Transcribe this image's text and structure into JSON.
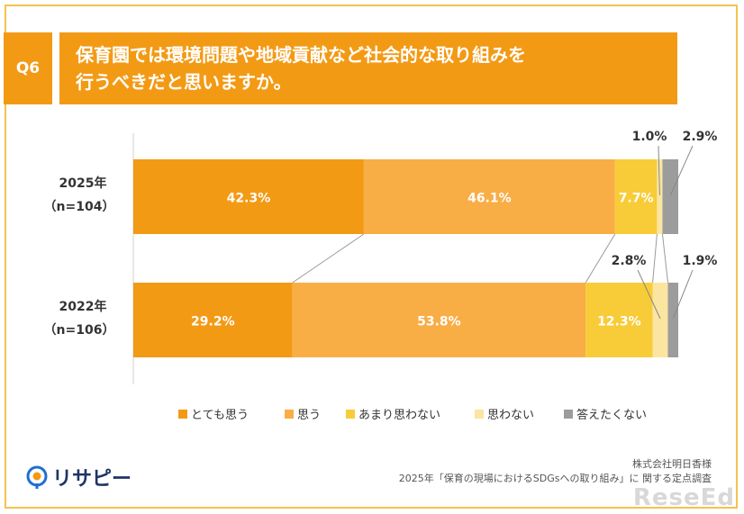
{
  "header": {
    "question_number": "Q6",
    "question_text": "保育園では環境問題や地域貢献など社会的な取り組みを\n行うべきだと思いますか。"
  },
  "colors": {
    "frame": "#f6c24f",
    "header_bg": "#f39a15",
    "series": [
      "#f39a15",
      "#f9ad45",
      "#f8cc38",
      "#fbe5a0",
      "#9c9c9c"
    ]
  },
  "chart_data": {
    "type": "bar",
    "orientation": "horizontal",
    "stacked": true,
    "percent": true,
    "categories": [
      {
        "year": "2025年",
        "n": "（n=104）"
      },
      {
        "year": "2022年",
        "n": "（n=106）"
      }
    ],
    "series": [
      {
        "name": "とても思う",
        "values": [
          42.3,
          29.2
        ],
        "labels": [
          "42.3%",
          "29.2%"
        ]
      },
      {
        "name": "思う",
        "values": [
          46.1,
          53.8
        ],
        "labels": [
          "46.1%",
          "53.8%"
        ]
      },
      {
        "name": "あまり思わない",
        "values": [
          7.7,
          12.3
        ],
        "labels": [
          "7.7%",
          "12.3%"
        ]
      },
      {
        "name": "思わない",
        "values": [
          1.0,
          2.8
        ],
        "labels": [
          "1.0%",
          "2.8%"
        ]
      },
      {
        "name": "答えたくない",
        "values": [
          2.9,
          1.9
        ],
        "labels": [
          "2.9%",
          "1.9%"
        ]
      }
    ],
    "legend_position": "bottom",
    "xlim": [
      0,
      100
    ],
    "series_connectors": true
  },
  "footer": {
    "logo_text": "リサピー",
    "credit_line1": "株式会社明日香様",
    "credit_line2": "2025年「保育の現場におけるSDGsへの取り組み」に 関する定点調査",
    "watermark": "ReseEd"
  }
}
